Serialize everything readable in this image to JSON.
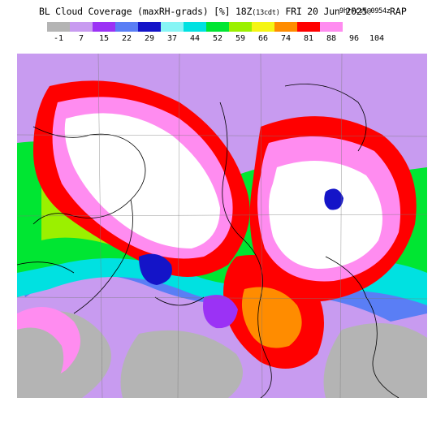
{
  "header": {
    "title": "BL Cloud Coverage (maxRH-grads) [%] 18Z",
    "local_time": "(13cdt)",
    "date": "FRI 20 Jun 2025",
    "forecast": "9hrFcst@0954z",
    "model": "RAP"
  },
  "legend": {
    "ticks": [
      "-1",
      "7",
      "15",
      "22",
      "29",
      "37",
      "44",
      "52",
      "59",
      "66",
      "74",
      "81",
      "88",
      "96",
      "104"
    ],
    "colors": [
      "#b4b4b4",
      "#c89bf0",
      "#9b32f5",
      "#5a7ef5",
      "#1414c8",
      "#87f5f5",
      "#00e1e1",
      "#00e632",
      "#9bf000",
      "#f5f514",
      "#ff8c00",
      "#ff0000",
      "#ff8cf0",
      "#ffffff"
    ]
  },
  "map": {
    "colors": {
      "clear": "#b4b4b4",
      "lavender": "#c89bf0",
      "purple": "#9b32f5",
      "blue": "#5a7ef5",
      "navy": "#1414c8",
      "cyan_light": "#87f5f5",
      "cyan": "#00e1e1",
      "green": "#00e632",
      "lime": "#9bf000",
      "yellow": "#f5f514",
      "orange": "#ff8c00",
      "red": "#ff0000",
      "pink": "#ff8cf0",
      "white": "#ffffff",
      "border": "#000000"
    }
  }
}
